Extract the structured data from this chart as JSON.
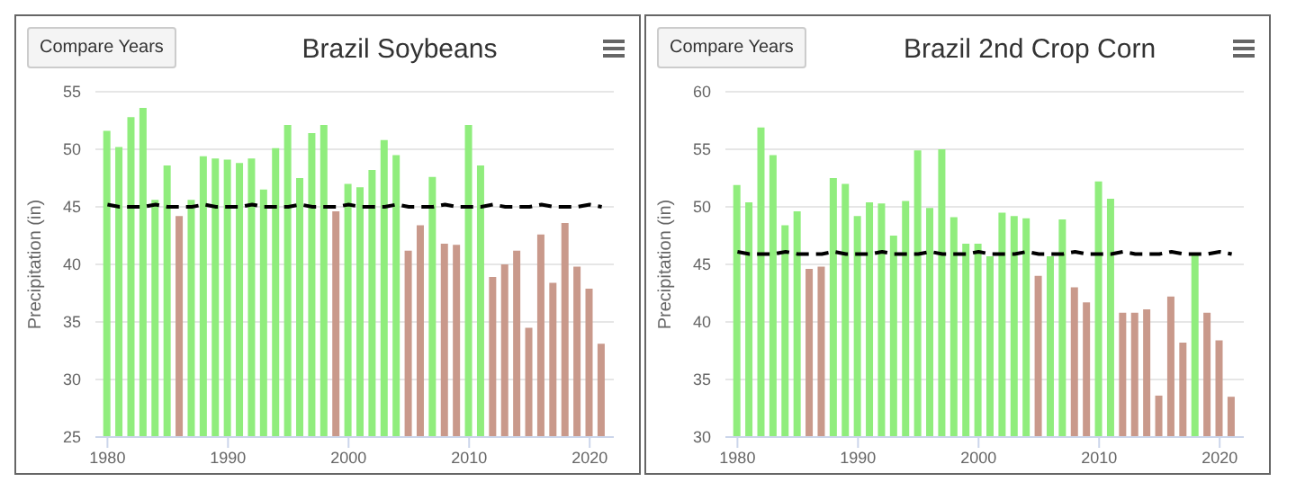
{
  "chart_data": [
    {
      "type": "bar",
      "title": "Brazil Soybeans",
      "ylabel": "Precipitation (in)",
      "annotations": [
        "Compare Years"
      ],
      "x": [
        1980,
        1981,
        1982,
        1983,
        1984,
        1985,
        1986,
        1987,
        1988,
        1989,
        1990,
        1991,
        1992,
        1993,
        1994,
        1995,
        1996,
        1997,
        1998,
        1999,
        2000,
        2001,
        2002,
        2003,
        2004,
        2005,
        2006,
        2007,
        2008,
        2009,
        2010,
        2011,
        2012,
        2013,
        2014,
        2015,
        2016,
        2017,
        2018,
        2019,
        2020,
        2021
      ],
      "xlim": [
        1979,
        2022
      ],
      "xticks": [
        1980,
        1990,
        2000,
        2010,
        2020
      ],
      "ylim": [
        25,
        55
      ],
      "yticks": [
        25,
        30,
        35,
        40,
        45,
        50,
        55
      ],
      "grid": "y",
      "series": [
        {
          "type": "bar",
          "values": [
            51.6,
            50.2,
            52.8,
            53.6,
            45.6,
            48.6,
            44.2,
            45.6,
            49.4,
            49.2,
            49.1,
            48.8,
            49.2,
            46.5,
            50.1,
            52.1,
            47.5,
            51.4,
            52.1,
            44.6,
            47.0,
            46.7,
            48.2,
            50.8,
            49.5,
            41.2,
            43.4,
            47.6,
            41.8,
            41.7,
            52.1,
            48.6,
            38.9,
            40.0,
            41.2,
            34.5,
            42.6,
            38.4,
            43.6,
            39.8,
            37.9,
            33.1
          ],
          "colors": [
            "#90ed7d",
            "#90ed7d",
            "#90ed7d",
            "#90ed7d",
            "#90ed7d",
            "#90ed7d",
            "#c9998b",
            "#90ed7d",
            "#90ed7d",
            "#90ed7d",
            "#90ed7d",
            "#90ed7d",
            "#90ed7d",
            "#90ed7d",
            "#90ed7d",
            "#90ed7d",
            "#90ed7d",
            "#90ed7d",
            "#90ed7d",
            "#c9998b",
            "#90ed7d",
            "#90ed7d",
            "#90ed7d",
            "#90ed7d",
            "#90ed7d",
            "#c9998b",
            "#c9998b",
            "#90ed7d",
            "#c9998b",
            "#c9998b",
            "#90ed7d",
            "#90ed7d",
            "#c9998b",
            "#c9998b",
            "#c9998b",
            "#c9998b",
            "#c9998b",
            "#c9998b",
            "#c9998b",
            "#c9998b",
            "#c9998b",
            "#c9998b"
          ]
        },
        {
          "type": "line",
          "color": "#000000",
          "line_style": "dashed",
          "values": [
            45.2,
            45.0,
            45.0,
            45.0,
            45.2,
            45.0,
            45.0,
            45.0,
            45.2,
            45.0,
            45.0,
            45.0,
            45.2,
            45.0,
            45.0,
            45.0,
            45.2,
            45.0,
            45.0,
            45.0,
            45.2,
            45.0,
            45.0,
            45.0,
            45.2,
            45.0,
            45.0,
            45.0,
            45.2,
            45.0,
            45.0,
            45.0,
            45.2,
            45.0,
            45.0,
            45.0,
            45.2,
            45.0,
            45.0,
            45.0,
            45.2,
            45.0
          ]
        }
      ]
    },
    {
      "type": "bar",
      "title": "Brazil 2nd Crop Corn",
      "ylabel": "Precipitation (in)",
      "annotations": [
        "Compare Years"
      ],
      "x": [
        1980,
        1981,
        1982,
        1983,
        1984,
        1985,
        1986,
        1987,
        1988,
        1989,
        1990,
        1991,
        1992,
        1993,
        1994,
        1995,
        1996,
        1997,
        1998,
        1999,
        2000,
        2001,
        2002,
        2003,
        2004,
        2005,
        2006,
        2007,
        2008,
        2009,
        2010,
        2011,
        2012,
        2013,
        2014,
        2015,
        2016,
        2017,
        2018,
        2019,
        2020,
        2021
      ],
      "xlim": [
        1979,
        2022
      ],
      "xticks": [
        1980,
        1990,
        2000,
        2010,
        2020
      ],
      "ylim": [
        30,
        60
      ],
      "yticks": [
        30,
        35,
        40,
        45,
        50,
        55,
        60
      ],
      "grid": "y",
      "series": [
        {
          "type": "bar",
          "values": [
            51.9,
            50.4,
            56.9,
            54.5,
            48.4,
            49.6,
            44.6,
            44.8,
            52.5,
            52.0,
            49.2,
            50.4,
            50.3,
            47.5,
            50.5,
            54.9,
            49.9,
            55.0,
            49.1,
            46.8,
            46.8,
            45.7,
            49.5,
            49.2,
            49.0,
            44.0,
            45.7,
            48.9,
            43.0,
            41.7,
            52.2,
            50.7,
            40.8,
            40.8,
            41.1,
            33.6,
            42.2,
            38.2,
            46.0,
            40.8,
            38.4,
            33.5
          ],
          "colors": [
            "#90ed7d",
            "#90ed7d",
            "#90ed7d",
            "#90ed7d",
            "#90ed7d",
            "#90ed7d",
            "#c9998b",
            "#c9998b",
            "#90ed7d",
            "#90ed7d",
            "#90ed7d",
            "#90ed7d",
            "#90ed7d",
            "#90ed7d",
            "#90ed7d",
            "#90ed7d",
            "#90ed7d",
            "#90ed7d",
            "#90ed7d",
            "#90ed7d",
            "#90ed7d",
            "#90ed7d",
            "#90ed7d",
            "#90ed7d",
            "#90ed7d",
            "#c9998b",
            "#90ed7d",
            "#90ed7d",
            "#c9998b",
            "#c9998b",
            "#90ed7d",
            "#90ed7d",
            "#c9998b",
            "#c9998b",
            "#c9998b",
            "#c9998b",
            "#c9998b",
            "#c9998b",
            "#90ed7d",
            "#c9998b",
            "#c9998b",
            "#c9998b"
          ]
        },
        {
          "type": "line",
          "color": "#000000",
          "line_style": "dashed",
          "values": [
            46.1,
            45.9,
            45.9,
            45.9,
            46.1,
            45.9,
            45.9,
            45.9,
            46.1,
            45.9,
            45.9,
            45.9,
            46.1,
            45.9,
            45.9,
            45.9,
            46.1,
            45.9,
            45.9,
            45.9,
            46.1,
            45.9,
            45.9,
            45.9,
            46.1,
            45.9,
            45.9,
            45.9,
            46.1,
            45.9,
            45.9,
            45.9,
            46.1,
            45.9,
            45.9,
            45.9,
            46.1,
            45.9,
            45.9,
            45.9,
            46.1,
            45.9
          ]
        }
      ]
    }
  ]
}
